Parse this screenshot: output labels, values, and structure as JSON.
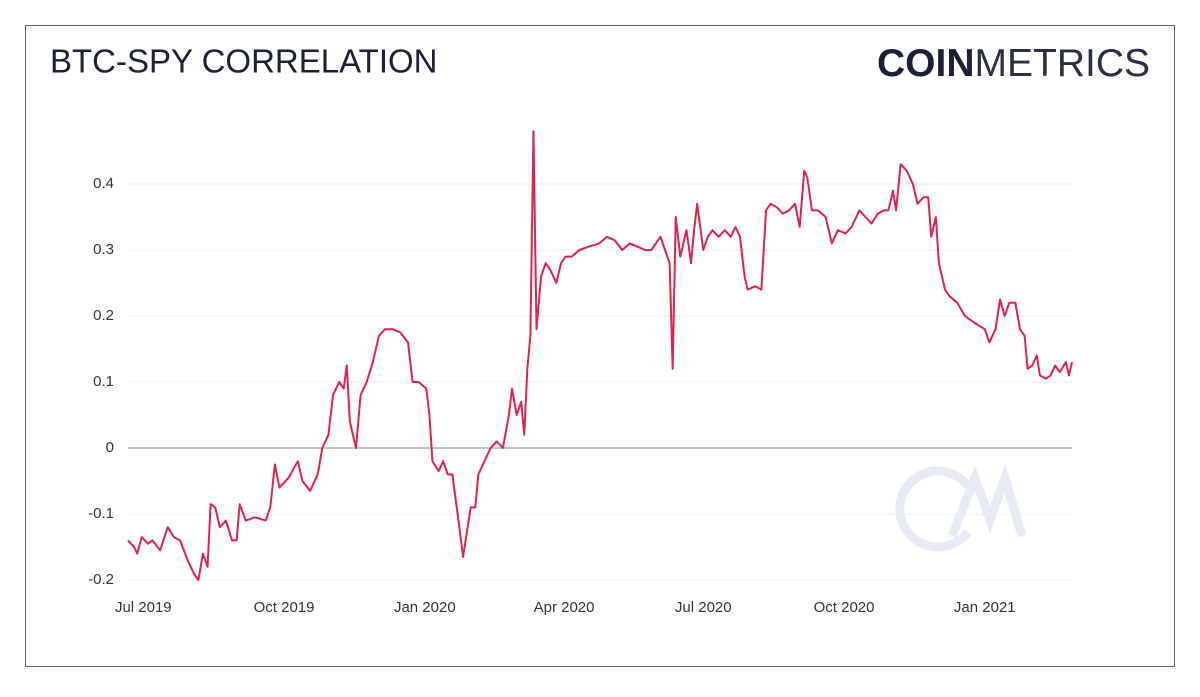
{
  "chart_data": {
    "type": "line",
    "title": "BTC-SPY CORRELATION",
    "brand": {
      "bold": "COIN",
      "light": "METRICS"
    },
    "x": [
      "2019-06-21",
      "2019-06-25",
      "2019-06-27",
      "2019-06-30",
      "2019-07-04",
      "2019-07-07",
      "2019-07-12",
      "2019-07-17",
      "2019-07-21",
      "2019-07-25",
      "2019-07-30",
      "2019-08-03",
      "2019-08-06",
      "2019-08-09",
      "2019-08-12",
      "2019-08-14",
      "2019-08-17",
      "2019-08-20",
      "2019-08-24",
      "2019-08-28",
      "2019-08-31",
      "2019-09-02",
      "2019-09-06",
      "2019-09-12",
      "2019-09-19",
      "2019-09-22",
      "2019-09-25",
      "2019-09-28",
      "2019-10-04",
      "2019-10-10",
      "2019-10-13",
      "2019-10-18",
      "2019-10-23",
      "2019-10-26",
      "2019-10-30",
      "2019-11-02",
      "2019-11-06",
      "2019-11-09",
      "2019-11-11",
      "2019-11-13",
      "2019-11-17",
      "2019-11-20",
      "2019-11-24",
      "2019-11-28",
      "2019-12-02",
      "2019-12-06",
      "2019-12-11",
      "2019-12-16",
      "2019-12-21",
      "2019-12-24",
      "2019-12-28",
      "2020-01-02",
      "2020-01-04",
      "2020-01-06",
      "2020-01-10",
      "2020-01-13",
      "2020-01-16",
      "2020-01-19",
      "2020-01-23",
      "2020-01-26",
      "2020-01-29",
      "2020-01-31",
      "2020-02-03",
      "2020-02-05",
      "2020-02-09",
      "2020-02-13",
      "2020-02-17",
      "2020-02-21",
      "2020-02-25",
      "2020-02-27",
      "2020-03-01",
      "2020-03-04",
      "2020-03-06",
      "2020-03-08",
      "2020-03-10",
      "2020-03-12",
      "2020-03-14",
      "2020-03-17",
      "2020-03-20",
      "2020-03-23",
      "2020-03-27",
      "2020-03-30",
      "2020-04-02",
      "2020-04-06",
      "2020-04-11",
      "2020-04-17",
      "2020-04-24",
      "2020-04-29",
      "2020-05-04",
      "2020-05-09",
      "2020-05-14",
      "2020-05-19",
      "2020-05-24",
      "2020-05-28",
      "2020-06-03",
      "2020-06-06",
      "2020-06-09",
      "2020-06-11",
      "2020-06-13",
      "2020-06-16",
      "2020-06-20",
      "2020-06-23",
      "2020-06-25",
      "2020-06-27",
      "2020-07-01",
      "2020-07-04",
      "2020-07-07",
      "2020-07-11",
      "2020-07-15",
      "2020-07-19",
      "2020-07-22",
      "2020-07-25",
      "2020-07-28",
      "2020-07-30",
      "2020-08-04",
      "2020-08-08",
      "2020-08-11",
      "2020-08-14",
      "2020-08-18",
      "2020-08-22",
      "2020-08-26",
      "2020-08-30",
      "2020-09-02",
      "2020-09-05",
      "2020-09-07",
      "2020-09-10",
      "2020-09-14",
      "2020-09-19",
      "2020-09-23",
      "2020-09-27",
      "2020-10-02",
      "2020-10-06",
      "2020-10-11",
      "2020-10-15",
      "2020-10-19",
      "2020-10-23",
      "2020-10-27",
      "2020-10-30",
      "2020-11-02",
      "2020-11-04",
      "2020-11-07",
      "2020-11-11",
      "2020-11-15",
      "2020-11-18",
      "2020-11-22",
      "2020-11-25",
      "2020-11-27",
      "2020-11-30",
      "2020-12-02",
      "2020-12-06",
      "2020-12-09",
      "2020-12-14",
      "2020-12-19",
      "2020-12-25",
      "2021-01-01",
      "2021-01-04",
      "2021-01-08",
      "2021-01-11",
      "2021-01-14",
      "2021-01-17",
      "2021-01-21",
      "2021-01-24",
      "2021-01-27",
      "2021-01-29",
      "2021-02-01",
      "2021-02-04",
      "2021-02-06",
      "2021-02-10",
      "2021-02-13",
      "2021-02-16",
      "2021-02-19",
      "2021-02-23",
      "2021-02-25",
      "2021-02-27"
    ],
    "series": [
      {
        "name": "BTC-SPY",
        "color": "#e0234e",
        "values": [
          -0.14,
          -0.15,
          -0.16,
          -0.135,
          -0.145,
          -0.14,
          -0.155,
          -0.12,
          -0.135,
          -0.14,
          -0.17,
          -0.19,
          -0.2,
          -0.16,
          -0.18,
          -0.085,
          -0.09,
          -0.12,
          -0.11,
          -0.14,
          -0.14,
          -0.085,
          -0.11,
          -0.105,
          -0.11,
          -0.09,
          -0.025,
          -0.06,
          -0.045,
          -0.02,
          -0.05,
          -0.065,
          -0.04,
          0.0,
          0.02,
          0.08,
          0.1,
          0.09,
          0.125,
          0.04,
          0.0,
          0.08,
          0.1,
          0.13,
          0.17,
          0.18,
          0.18,
          0.175,
          0.16,
          0.1,
          0.1,
          0.09,
          0.05,
          -0.02,
          -0.035,
          -0.02,
          -0.04,
          -0.04,
          -0.11,
          -0.165,
          -0.12,
          -0.09,
          -0.09,
          -0.04,
          -0.02,
          0.0,
          0.01,
          0.0,
          0.05,
          0.09,
          0.05,
          0.07,
          0.02,
          0.12,
          0.17,
          0.48,
          0.18,
          0.26,
          0.28,
          0.27,
          0.25,
          0.28,
          0.29,
          0.29,
          0.3,
          0.305,
          0.31,
          0.32,
          0.315,
          0.3,
          0.31,
          0.305,
          0.3,
          0.3,
          0.32,
          0.3,
          0.28,
          0.12,
          0.35,
          0.29,
          0.33,
          0.28,
          0.33,
          0.37,
          0.3,
          0.32,
          0.33,
          0.32,
          0.33,
          0.32,
          0.335,
          0.32,
          0.26,
          0.24,
          0.245,
          0.24,
          0.36,
          0.37,
          0.365,
          0.355,
          0.36,
          0.37,
          0.335,
          0.42,
          0.41,
          0.36,
          0.36,
          0.35,
          0.31,
          0.33,
          0.325,
          0.335,
          0.36,
          0.35,
          0.34,
          0.355,
          0.36,
          0.36,
          0.39,
          0.36,
          0.43,
          0.42,
          0.4,
          0.37,
          0.38,
          0.38,
          0.32,
          0.35,
          0.28,
          0.24,
          0.23,
          0.22,
          0.2,
          0.19,
          0.18,
          0.16,
          0.18,
          0.225,
          0.2,
          0.22,
          0.22,
          0.18,
          0.17,
          0.12,
          0.125,
          0.14,
          0.11,
          0.105,
          0.11,
          0.125,
          0.115,
          0.13,
          0.11,
          0.13
        ]
      }
    ],
    "xlim": [
      "2019-06-21",
      "2021-02-27"
    ],
    "xticks": [
      {
        "value": "2019-07-01",
        "label": "Jul 2019"
      },
      {
        "value": "2019-10-01",
        "label": "Oct 2019"
      },
      {
        "value": "2020-01-01",
        "label": "Jan 2020"
      },
      {
        "value": "2020-04-01",
        "label": "Apr 2020"
      },
      {
        "value": "2020-07-01",
        "label": "Jul 2020"
      },
      {
        "value": "2020-10-01",
        "label": "Oct 2020"
      },
      {
        "value": "2021-01-01",
        "label": "Jan 2021"
      }
    ],
    "ylim": [
      -0.2,
      0.5
    ],
    "yticks": [
      -0.2,
      -0.1,
      0,
      0.1,
      0.2,
      0.3,
      0.4
    ],
    "grid": true
  }
}
